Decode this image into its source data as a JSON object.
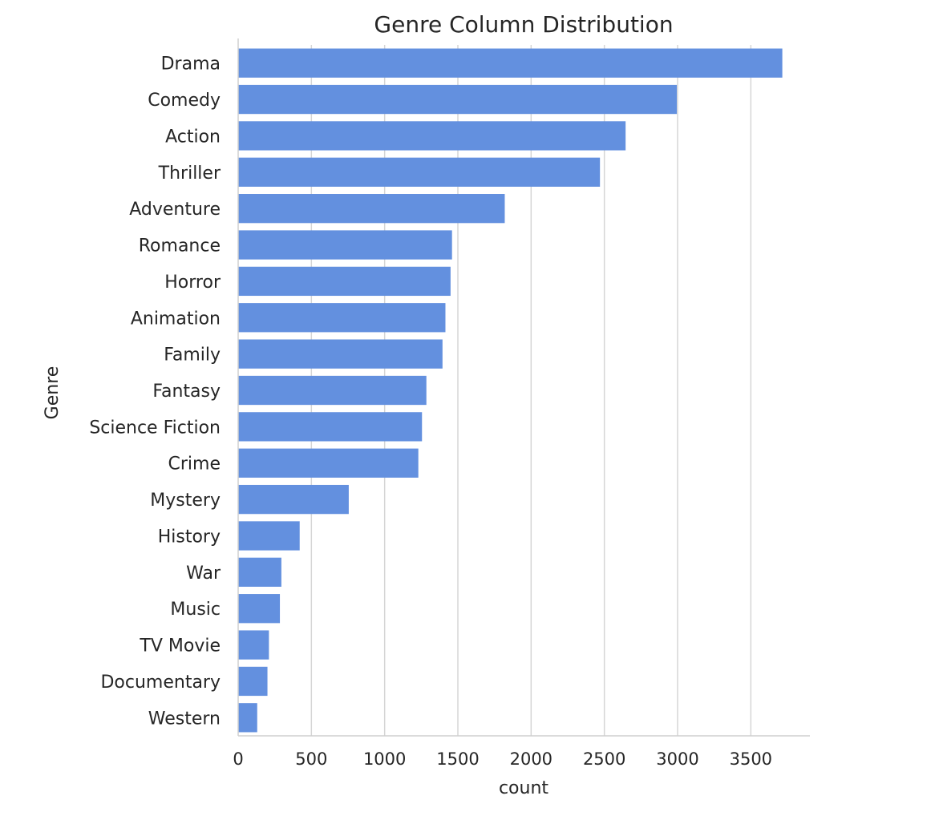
{
  "chart_data": {
    "type": "bar",
    "orientation": "horizontal",
    "title": "Genre Column Distribution",
    "xlabel": "count",
    "ylabel": "Genre",
    "categories": [
      "Drama",
      "Comedy",
      "Action",
      "Thriller",
      "Adventure",
      "Romance",
      "Horror",
      "Animation",
      "Family",
      "Fantasy",
      "Science Fiction",
      "Crime",
      "Mystery",
      "History",
      "War",
      "Music",
      "TV Movie",
      "Documentary",
      "Western"
    ],
    "values": [
      3715,
      2995,
      2645,
      2470,
      1820,
      1460,
      1450,
      1415,
      1395,
      1285,
      1255,
      1230,
      755,
      420,
      295,
      285,
      210,
      200,
      130
    ],
    "xticks": [
      0,
      500,
      1000,
      1500,
      2000,
      2500,
      3000,
      3500
    ],
    "xlim": [
      0,
      3900
    ],
    "grid": true,
    "bar_color": "#6390df"
  }
}
